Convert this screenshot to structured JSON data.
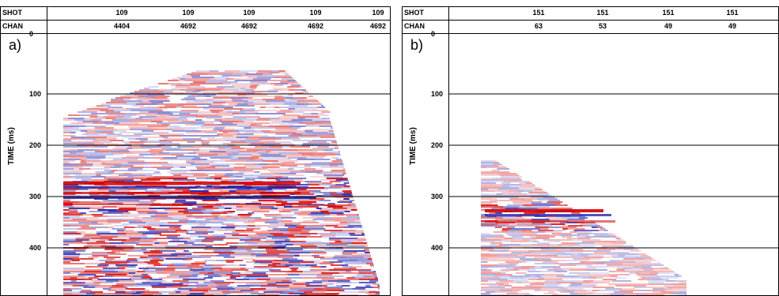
{
  "panels": [
    {
      "label": "a)",
      "shot_label": "SHOT",
      "chan_label": "CHAN",
      "shot_values": [
        "109",
        "109",
        "109",
        "109",
        "109"
      ],
      "chan_values": [
        "4404",
        "4692",
        "4692",
        "4692",
        "4692"
      ],
      "ylabel": "TIME (ms)",
      "yticks": [
        "0",
        "100",
        "200",
        "300",
        "400"
      ]
    },
    {
      "label": "b)",
      "shot_label": "SHOT",
      "chan_label": "CHAN",
      "shot_values": [
        "151",
        "151",
        "151",
        "151"
      ],
      "chan_values": [
        "63",
        "53",
        "49",
        "49"
      ],
      "ylabel": "TIME (ms)",
      "yticks": [
        "0",
        "100",
        "200",
        "300",
        "400"
      ]
    }
  ],
  "colors": {
    "positive": "#d40000",
    "negative": "#1a1aa8",
    "grid": "#000000"
  }
}
